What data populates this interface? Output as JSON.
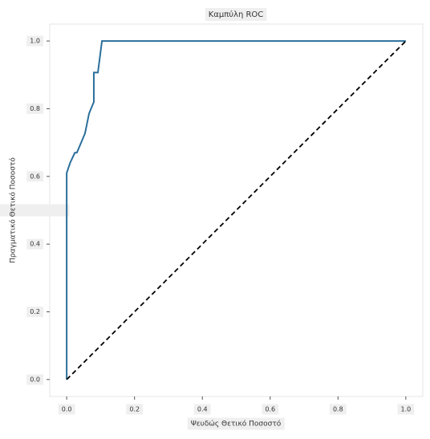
{
  "chart_data": {
    "type": "line",
    "title": "Καμπύλη ROC",
    "xlabel": "Ψευδώς Θετικό Ποσοστό",
    "ylabel": "Πραγματικό Θετικό Ποσοστό",
    "series": [
      {
        "color": "#2a6f9b",
        "dash": false,
        "x": [
          0.0,
          0.0,
          0.01,
          0.024,
          0.03,
          0.054,
          0.066,
          0.08,
          0.08,
          0.092,
          0.104,
          1.0
        ],
        "values": [
          0.0,
          0.61,
          0.64,
          0.67,
          0.67,
          0.727,
          0.786,
          0.82,
          0.907,
          0.907,
          1.0,
          1.0
        ]
      },
      {
        "color": "#000000",
        "dash": true,
        "x": [
          0.0,
          1.0
        ],
        "values": [
          0.0,
          1.0
        ]
      }
    ],
    "xlim": [
      -0.05,
      1.05
    ],
    "ylim": [
      -0.05,
      1.05
    ],
    "xticks": [
      {
        "value": 0,
        "label": "0.0"
      },
      0.2,
      0.4,
      0.6,
      0.8,
      {
        "value": 1,
        "label": "1.0"
      }
    ],
    "yticks": [
      {
        "value": 0,
        "label": "0.0"
      },
      0.2,
      0.4,
      0.6,
      0.8,
      {
        "value": 1,
        "label": "1.0"
      }
    ],
    "grid": false
  }
}
